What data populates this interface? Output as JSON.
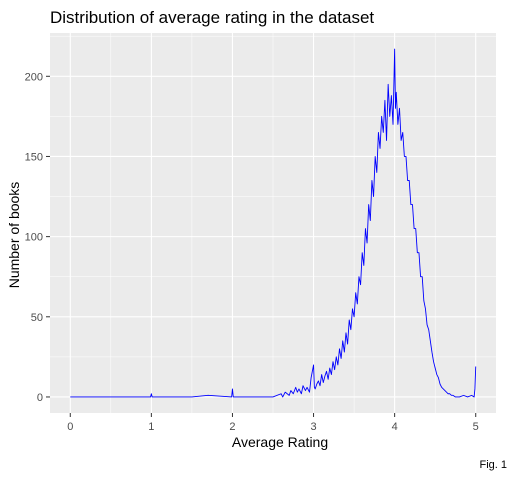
{
  "chart_data": {
    "type": "line",
    "title": "Distribution of average rating in the dataset",
    "xlabel": "Average Rating",
    "ylabel": "Number of books",
    "caption": "Fig. 1",
    "xlim": [
      -0.25,
      5.25
    ],
    "ylim": [
      -10,
      227
    ],
    "x_ticks": [
      0,
      1,
      2,
      3,
      4,
      5
    ],
    "y_ticks": [
      0,
      50,
      100,
      150,
      200
    ],
    "grid": true,
    "panel_background": "#ebebeb",
    "grid_color": "#ffffff",
    "series": [
      {
        "color": "#0000ff",
        "x": [
          0,
          0.5,
          0.99,
          1.0,
          1.01,
          1.5,
          1.7,
          1.99,
          2.0,
          2.01,
          2.3,
          2.5,
          2.6,
          2.62,
          2.65,
          2.7,
          2.72,
          2.75,
          2.78,
          2.8,
          2.82,
          2.85,
          2.87,
          2.9,
          2.92,
          2.95,
          2.97,
          3.0,
          3.01,
          3.02,
          3.04,
          3.06,
          3.08,
          3.1,
          3.12,
          3.14,
          3.16,
          3.18,
          3.2,
          3.22,
          3.24,
          3.26,
          3.28,
          3.3,
          3.32,
          3.34,
          3.36,
          3.38,
          3.4,
          3.42,
          3.44,
          3.46,
          3.48,
          3.5,
          3.52,
          3.54,
          3.56,
          3.58,
          3.6,
          3.62,
          3.64,
          3.66,
          3.68,
          3.7,
          3.72,
          3.74,
          3.76,
          3.78,
          3.8,
          3.82,
          3.84,
          3.86,
          3.88,
          3.9,
          3.92,
          3.94,
          3.96,
          3.98,
          4.0,
          4.01,
          4.02,
          4.04,
          4.06,
          4.08,
          4.1,
          4.12,
          4.14,
          4.16,
          4.18,
          4.2,
          4.22,
          4.24,
          4.26,
          4.28,
          4.3,
          4.32,
          4.34,
          4.36,
          4.38,
          4.4,
          4.42,
          4.44,
          4.46,
          4.48,
          4.5,
          4.52,
          4.54,
          4.56,
          4.58,
          4.6,
          4.62,
          4.64,
          4.66,
          4.68,
          4.7,
          4.72,
          4.75,
          4.8,
          4.85,
          4.9,
          4.95,
          4.98,
          4.99,
          5.0
        ],
        "y": [
          0,
          0,
          0,
          2,
          0,
          0,
          1,
          0,
          5,
          0,
          0,
          0,
          2,
          0,
          3,
          1,
          4,
          2,
          6,
          3,
          5,
          2,
          7,
          4,
          6,
          3,
          12,
          20,
          6,
          5,
          8,
          10,
          7,
          14,
          9,
          13,
          16,
          11,
          18,
          14,
          22,
          17,
          25,
          20,
          30,
          24,
          35,
          28,
          40,
          33,
          48,
          42,
          55,
          50,
          65,
          58,
          75,
          70,
          90,
          82,
          105,
          96,
          120,
          110,
          135,
          125,
          150,
          140,
          165,
          155,
          175,
          165,
          185,
          160,
          195,
          175,
          188,
          170,
          217,
          180,
          190,
          170,
          180,
          160,
          165,
          150,
          150,
          135,
          135,
          120,
          120,
          105,
          105,
          90,
          90,
          75,
          75,
          60,
          55,
          45,
          42,
          35,
          28,
          22,
          18,
          14,
          12,
          8,
          6,
          5,
          4,
          3,
          2,
          2,
          1,
          1,
          0,
          0,
          1,
          0,
          1,
          0,
          5,
          19
        ]
      }
    ]
  }
}
